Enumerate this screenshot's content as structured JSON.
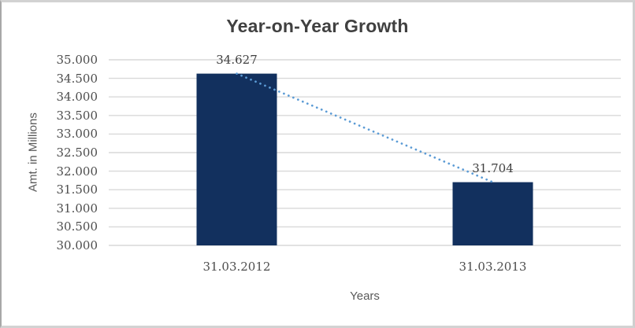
{
  "chart_data": {
    "type": "bar",
    "title": "Year-on-Year Growth",
    "xlabel": "Years",
    "ylabel": "Amt. in Millions",
    "categories": [
      "31.03.2012",
      "31.03.2013"
    ],
    "series": [
      {
        "name": "Amt. in Millions",
        "values": [
          34627,
          31704
        ]
      }
    ],
    "data_labels": [
      "34.627",
      "31.704"
    ],
    "ylim": [
      30000,
      35000
    ],
    "ytick_values": [
      35000,
      34500,
      34000,
      33500,
      33000,
      32500,
      32000,
      31500,
      31000,
      30500,
      30000
    ],
    "ytick_labels": [
      "35.000",
      "34.500",
      "34.000",
      "33.500",
      "33.000",
      "32.500",
      "32.000",
      "31.500",
      "31.000",
      "30.500",
      "30.000"
    ],
    "grid": "horizontal",
    "legend": "none",
    "trendline": {
      "style": "dotted",
      "from": [
        0,
        34627
      ],
      "to": [
        1,
        31704
      ]
    }
  },
  "colors": {
    "bar": "#12305E",
    "trendline": "#5B9BD5",
    "gridline": "#D9D9D9",
    "axis_line": "#D9D9D9",
    "title_text": "#404040",
    "axis_title_text": "#595959",
    "tick_text": "#4D4D4D",
    "data_label_text": "#404040",
    "background": "#FFFFFF"
  }
}
